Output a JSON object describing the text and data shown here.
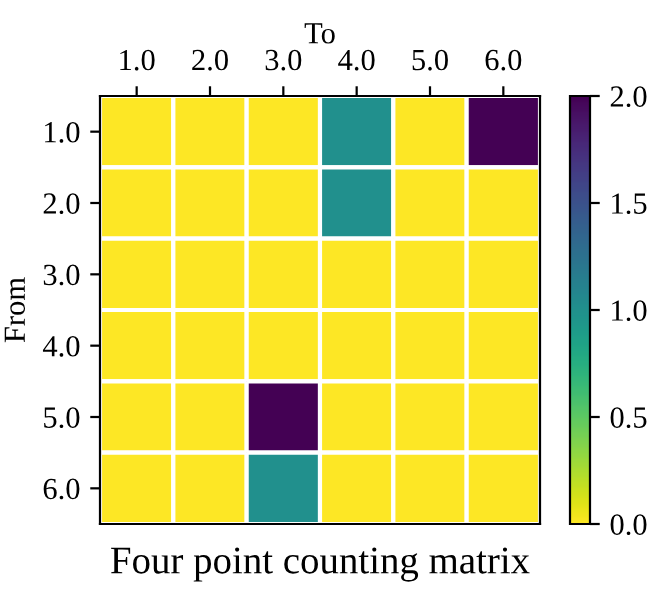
{
  "chart_data": {
    "type": "heatmap",
    "title": "Four point counting matrix",
    "xlabel": "To",
    "ylabel": "From",
    "categories": [
      "1.0",
      "2.0",
      "3.0",
      "4.0",
      "5.0",
      "6.0"
    ],
    "y_categories": [
      "1.0",
      "2.0",
      "3.0",
      "4.0",
      "5.0",
      "6.0"
    ],
    "cells": [
      [
        0,
        0,
        0,
        1,
        0,
        2
      ],
      [
        0,
        0,
        0,
        1,
        0,
        0
      ],
      [
        0,
        0,
        0,
        0,
        0,
        0
      ],
      [
        0,
        0,
        0,
        0,
        0,
        0
      ],
      [
        0,
        0,
        2,
        0,
        0,
        0
      ],
      [
        0,
        0,
        1,
        0,
        0,
        0
      ]
    ],
    "clim": [
      0,
      2
    ],
    "cticks": [
      {
        "value": 0,
        "label": "0.0"
      },
      {
        "value": 0.5,
        "label": "0.5"
      },
      {
        "value": 1,
        "label": "1.0"
      },
      {
        "value": 1.5,
        "label": "1.5"
      },
      {
        "value": 2,
        "label": "2.0"
      }
    ]
  }
}
